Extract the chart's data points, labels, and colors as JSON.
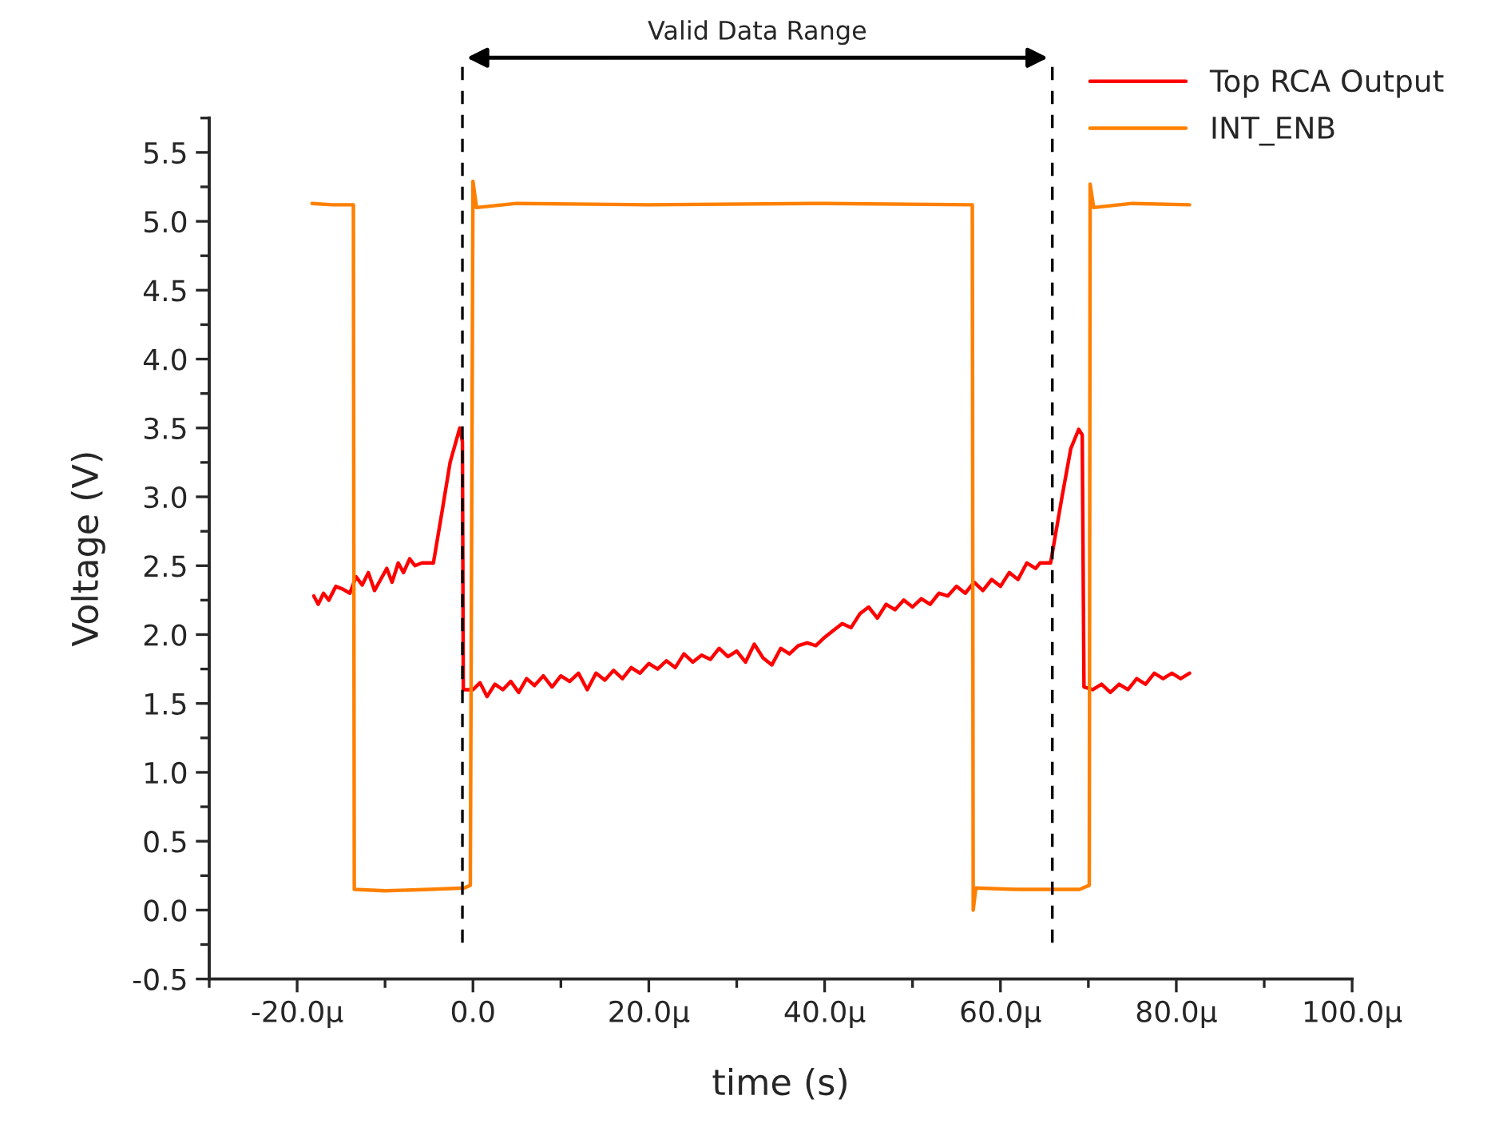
{
  "chart_data": {
    "type": "line",
    "xlabel": "time (s)",
    "ylabel": "Voltage (V)",
    "annotations": [
      "Valid Data Range"
    ],
    "xlim": [
      -30,
      100
    ],
    "xticks": [
      {
        "value": -20,
        "label": "-20.0µ"
      },
      {
        "value": 0,
        "label": "0.0"
      },
      {
        "value": 20,
        "label": "20.0µ"
      },
      {
        "value": 40,
        "label": "40.0µ"
      },
      {
        "value": 60,
        "label": "60.0µ"
      },
      {
        "value": 80,
        "label": "80.0µ"
      },
      {
        "value": 100,
        "label": "100.0µ"
      }
    ],
    "ylim": [
      -0.5,
      5.75
    ],
    "yticks": [
      {
        "value": -0.5,
        "label": "-0.5"
      },
      {
        "value": 0,
        "label": "0.0"
      },
      {
        "value": 0.5,
        "label": "0.5"
      },
      {
        "value": 1,
        "label": "1.0"
      },
      {
        "value": 1.5,
        "label": "1.5"
      },
      {
        "value": 2,
        "label": "2.0"
      },
      {
        "value": 2.5,
        "label": "2.5"
      },
      {
        "value": 3,
        "label": "3.0"
      },
      {
        "value": 3.5,
        "label": "3.5"
      },
      {
        "value": 4,
        "label": "4.0"
      },
      {
        "value": 4.5,
        "label": "4.5"
      },
      {
        "value": 5,
        "label": "5.0"
      },
      {
        "value": 5.5,
        "label": "5.5"
      }
    ],
    "grid": false,
    "legend": "top right",
    "marker": "none",
    "line_style": "solid",
    "ref_lines": [
      {
        "axis": "x",
        "value": -1.2,
        "color": "#000000",
        "line_style": "dashed"
      },
      {
        "axis": "x",
        "value": 65.9,
        "color": "#000000",
        "line_style": "dashed"
      }
    ],
    "series": [
      {
        "name": "Top RCA Output",
        "color": "#ff0000",
        "x": [
          -18.1,
          -17.6,
          -17.0,
          -16.4,
          -15.6,
          -14.8,
          -14.0,
          -13.3,
          -12.6,
          -11.9,
          -11.2,
          -10.5,
          -9.8,
          -9.2,
          -8.5,
          -7.9,
          -7.2,
          -6.6,
          -5.8,
          -4.5,
          -3.5,
          -2.6,
          -1.5,
          -1.2,
          -1.1,
          0.0,
          0.8,
          1.6,
          2.5,
          3.4,
          4.3,
          5.2,
          6.1,
          7.0,
          8.0,
          9.0,
          10.0,
          11.0,
          12.0,
          13.0,
          14.0,
          15.0,
          16.0,
          17.0,
          18.0,
          19.0,
          20.0,
          21.0,
          22.0,
          23.0,
          24.0,
          25.0,
          26.0,
          27.0,
          28.0,
          29.0,
          30.0,
          31.0,
          32.0,
          33.0,
          34.0,
          35.0,
          36.0,
          37.0,
          38.0,
          39.0,
          40.0,
          41.0,
          42.0,
          43.0,
          44.0,
          45.0,
          46.0,
          47.0,
          48.0,
          49.0,
          50.0,
          51.0,
          52.0,
          53.0,
          54.0,
          55.0,
          56.0,
          57.0,
          58.0,
          59.0,
          60.0,
          61.0,
          62.0,
          63.0,
          64.0,
          64.5,
          65.7,
          67.0,
          68.0,
          68.9,
          69.3,
          69.5,
          70.5,
          71.5,
          72.5,
          73.5,
          74.5,
          75.5,
          76.5,
          77.5,
          78.5,
          79.5,
          80.5,
          81.5
        ],
        "values": [
          2.28,
          2.22,
          2.3,
          2.25,
          2.35,
          2.33,
          2.3,
          2.42,
          2.36,
          2.45,
          2.32,
          2.4,
          2.48,
          2.38,
          2.52,
          2.45,
          2.55,
          2.5,
          2.52,
          2.52,
          2.9,
          3.25,
          3.5,
          3.4,
          1.6,
          1.6,
          1.65,
          1.55,
          1.64,
          1.6,
          1.66,
          1.58,
          1.68,
          1.63,
          1.7,
          1.62,
          1.7,
          1.66,
          1.72,
          1.6,
          1.72,
          1.67,
          1.74,
          1.68,
          1.76,
          1.72,
          1.79,
          1.75,
          1.81,
          1.76,
          1.86,
          1.8,
          1.85,
          1.82,
          1.9,
          1.84,
          1.88,
          1.8,
          1.93,
          1.83,
          1.78,
          1.9,
          1.86,
          1.92,
          1.94,
          1.92,
          1.98,
          2.03,
          2.08,
          2.05,
          2.15,
          2.2,
          2.12,
          2.22,
          2.18,
          2.25,
          2.2,
          2.26,
          2.22,
          2.3,
          2.28,
          2.35,
          2.3,
          2.38,
          2.32,
          2.4,
          2.35,
          2.45,
          2.4,
          2.52,
          2.48,
          2.52,
          2.52,
          3.0,
          3.35,
          3.49,
          3.45,
          1.62,
          1.6,
          1.64,
          1.58,
          1.64,
          1.6,
          1.68,
          1.64,
          1.72,
          1.68,
          1.72,
          1.68,
          1.72
        ]
      },
      {
        "name": "INT_ENB",
        "color": "#ff8000",
        "x": [
          -18.3,
          -16.0,
          -13.6,
          -13.5,
          -10.0,
          -5.0,
          -1.0,
          -0.3,
          0.0,
          0.4,
          5.0,
          20.0,
          40.0,
          56.8,
          56.9,
          57.2,
          62.0,
          69.0,
          70.1,
          70.2,
          70.6,
          75.0,
          81.5
        ],
        "values": [
          5.13,
          5.12,
          5.12,
          0.15,
          0.14,
          0.15,
          0.16,
          0.18,
          5.29,
          5.1,
          5.13,
          5.12,
          5.13,
          5.12,
          0.0,
          0.16,
          0.15,
          0.15,
          0.18,
          5.27,
          5.1,
          5.13,
          5.12
        ]
      }
    ]
  }
}
